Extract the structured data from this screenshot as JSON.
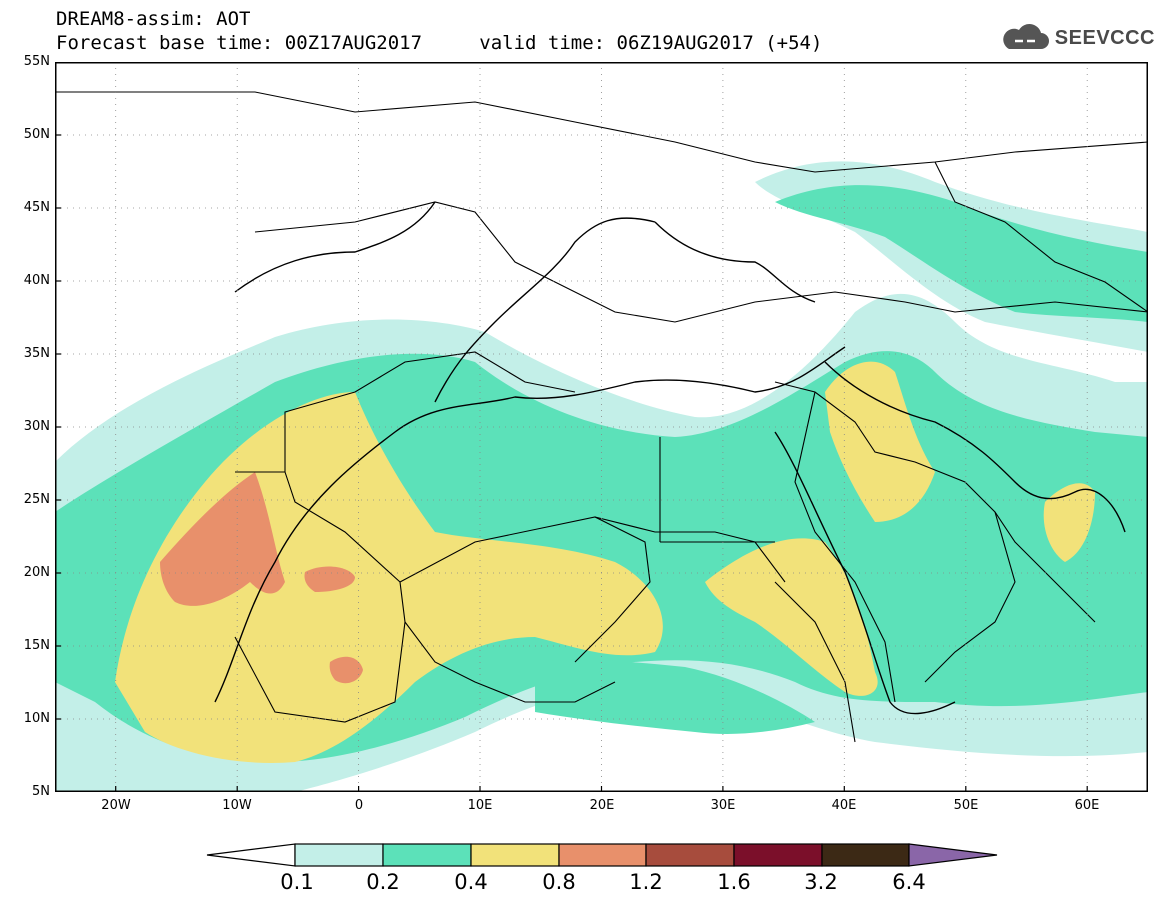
{
  "header": {
    "title": "DREAM8-assim: AOT",
    "base_time_label": "Forecast base time: 00Z17AUG2017",
    "valid_time_label": "valid time: 06Z19AUG2017 (+54)"
  },
  "logo": {
    "text": "SEEVCCC",
    "icon": "cloud-icon"
  },
  "map": {
    "lon_range": [
      -25,
      65
    ],
    "lat_range": [
      5,
      55
    ],
    "lat_ticks": [
      "55N",
      "50N",
      "45N",
      "40N",
      "35N",
      "30N",
      "25N",
      "20N",
      "15N",
      "10N",
      "5N"
    ],
    "lon_ticks": [
      "20W",
      "10W",
      "0",
      "10E",
      "20E",
      "30E",
      "40E",
      "50E",
      "60E"
    ],
    "grid": "dotted"
  },
  "legend": {
    "labels": [
      "0.1",
      "0.2",
      "0.4",
      "0.8",
      "1.2",
      "1.6",
      "3.2",
      "6.4"
    ],
    "colors": [
      "#ffffff",
      "#c3efe8",
      "#5ce1b9",
      "#f2e27a",
      "#e8906b",
      "#a74c3d",
      "#7b0f2a",
      "#3c2915",
      "#8a66a8"
    ]
  }
}
